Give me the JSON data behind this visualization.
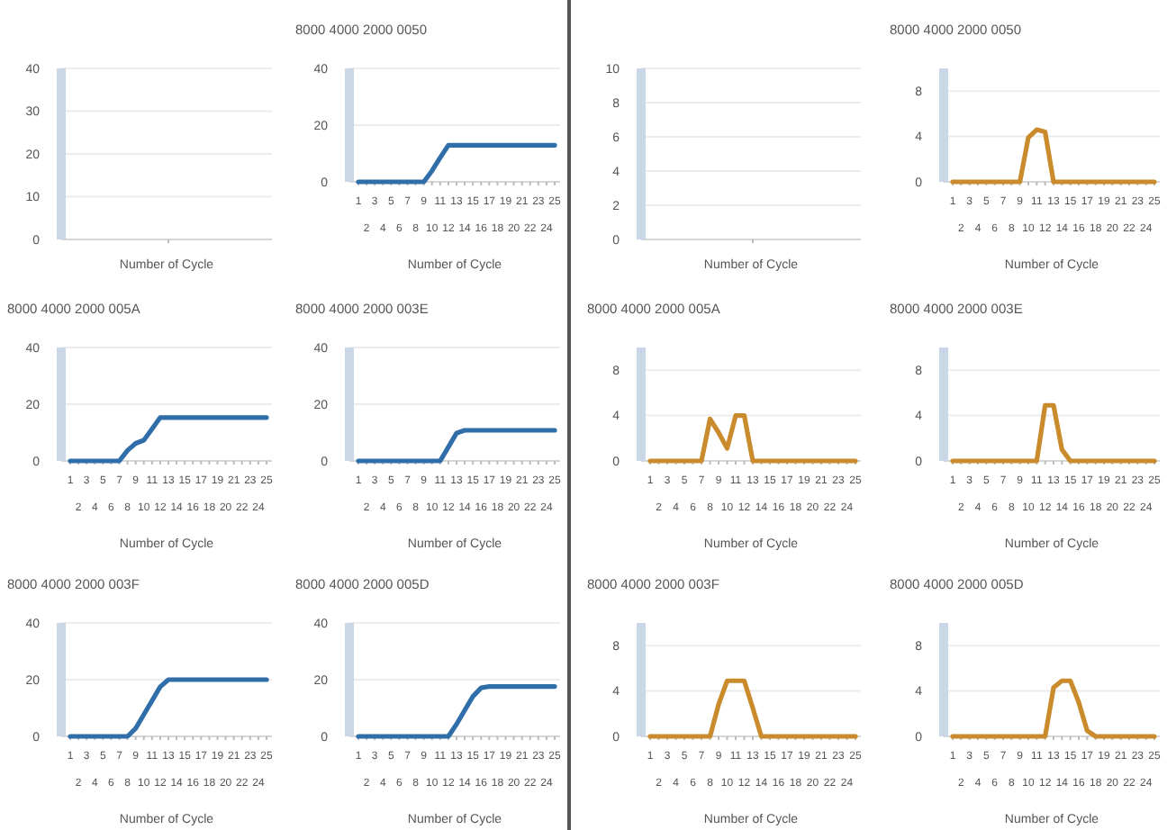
{
  "chart_data": [
    {
      "type": "line",
      "xlabel": "Number of Cycle",
      "categories": [
        null
      ],
      "values": [
        null
      ],
      "ylim": [
        0,
        40
      ],
      "yticks": [
        0,
        10,
        20,
        30,
        40
      ],
      "grid": "y",
      "tick_labels": "y"
    },
    {
      "type": "line",
      "title": "8000 4000 2000 0050",
      "xlabel": "Number of Cycle",
      "categories": [
        "1",
        "2",
        "3",
        "4",
        "5",
        "6",
        "7",
        "8",
        "9",
        "10",
        "11",
        "12",
        "13",
        "14",
        "15",
        "16",
        "17",
        "18",
        "19",
        "20",
        "21",
        "22",
        "23",
        "24",
        "25"
      ],
      "ylim": [
        0,
        40
      ],
      "yticks": [
        0,
        20,
        40
      ],
      "grid": "y",
      "series": [
        {
          "color": "#2f6ea8",
          "values": [
            0,
            0,
            0,
            0,
            0,
            0,
            0,
            0,
            0,
            3.9,
            8.5,
            12.9,
            12.9,
            12.9,
            12.9,
            12.9,
            12.9,
            12.9,
            12.9,
            12.9,
            12.9,
            12.9,
            12.9,
            12.9,
            12.9
          ]
        }
      ]
    },
    {
      "type": "line",
      "xlabel": "Number of Cycle",
      "categories": [
        null
      ],
      "values": [
        null
      ],
      "ylim": [
        0,
        10
      ],
      "yticks": [
        0,
        2,
        4,
        6,
        8,
        10
      ],
      "grid": "y",
      "tick_labels": "y"
    },
    {
      "type": "line",
      "title": "8000 4000 2000 0050",
      "xlabel": "Number of Cycle",
      "categories": [
        "1",
        "2",
        "3",
        "4",
        "5",
        "6",
        "7",
        "8",
        "9",
        "10",
        "11",
        "12",
        "13",
        "14",
        "15",
        "16",
        "17",
        "18",
        "19",
        "20",
        "21",
        "22",
        "23",
        "24",
        "25"
      ],
      "ylim": [
        0,
        10
      ],
      "yticks": [
        0,
        4,
        8
      ],
      "grid": "y",
      "series": [
        {
          "color": "#c98b2c",
          "values": [
            0,
            0,
            0,
            0,
            0,
            0,
            0,
            0,
            0,
            3.9,
            4.6,
            4.4,
            0,
            0,
            0,
            0,
            0,
            0,
            0,
            0,
            0,
            0,
            0,
            0,
            0
          ]
        }
      ]
    },
    {
      "type": "line",
      "title": "8000 4000 2000 005A",
      "xlabel": "Number of Cycle",
      "categories": [
        "1",
        "2",
        "3",
        "4",
        "5",
        "6",
        "7",
        "8",
        "9",
        "10",
        "11",
        "12",
        "13",
        "14",
        "15",
        "16",
        "17",
        "18",
        "19",
        "20",
        "21",
        "22",
        "23",
        "24",
        "25"
      ],
      "ylim": [
        0,
        40
      ],
      "yticks": [
        0,
        20,
        40
      ],
      "grid": "y",
      "series": [
        {
          "color": "#2f6ea8",
          "values": [
            0,
            0,
            0,
            0,
            0,
            0,
            0,
            3.7,
            6.2,
            7.3,
            11.3,
            15.3,
            15.3,
            15.3,
            15.3,
            15.3,
            15.3,
            15.3,
            15.3,
            15.3,
            15.3,
            15.3,
            15.3,
            15.3,
            15.3
          ]
        }
      ]
    },
    {
      "type": "line",
      "title": "8000 4000 2000 003E",
      "xlabel": "Number of Cycle",
      "categories": [
        "1",
        "2",
        "3",
        "4",
        "5",
        "6",
        "7",
        "8",
        "9",
        "10",
        "11",
        "12",
        "13",
        "14",
        "15",
        "16",
        "17",
        "18",
        "19",
        "20",
        "21",
        "22",
        "23",
        "24",
        "25"
      ],
      "ylim": [
        0,
        40
      ],
      "yticks": [
        0,
        20,
        40
      ],
      "grid": "y",
      "series": [
        {
          "color": "#2f6ea8",
          "values": [
            0,
            0,
            0,
            0,
            0,
            0,
            0,
            0,
            0,
            0,
            0,
            4.9,
            9.8,
            10.8,
            10.8,
            10.8,
            10.8,
            10.8,
            10.8,
            10.8,
            10.8,
            10.8,
            10.8,
            10.8,
            10.8
          ]
        }
      ]
    },
    {
      "type": "line",
      "title": "8000 4000 2000 005A",
      "xlabel": "Number of Cycle",
      "categories": [
        "1",
        "2",
        "3",
        "4",
        "5",
        "6",
        "7",
        "8",
        "9",
        "10",
        "11",
        "12",
        "13",
        "14",
        "15",
        "16",
        "17",
        "18",
        "19",
        "20",
        "21",
        "22",
        "23",
        "24",
        "25"
      ],
      "ylim": [
        0,
        10
      ],
      "yticks": [
        0,
        4,
        8
      ],
      "grid": "y",
      "series": [
        {
          "color": "#c98b2c",
          "values": [
            0,
            0,
            0,
            0,
            0,
            0,
            0,
            3.7,
            2.5,
            1.1,
            4,
            4,
            0,
            0,
            0,
            0,
            0,
            0,
            0,
            0,
            0,
            0,
            0,
            0,
            0
          ]
        }
      ]
    },
    {
      "type": "line",
      "title": "8000 4000 2000 003E",
      "xlabel": "Number of Cycle",
      "categories": [
        "1",
        "2",
        "3",
        "4",
        "5",
        "6",
        "7",
        "8",
        "9",
        "10",
        "11",
        "12",
        "13",
        "14",
        "15",
        "16",
        "17",
        "18",
        "19",
        "20",
        "21",
        "22",
        "23",
        "24",
        "25"
      ],
      "ylim": [
        0,
        10
      ],
      "yticks": [
        0,
        4,
        8
      ],
      "grid": "y",
      "series": [
        {
          "color": "#c98b2c",
          "values": [
            0,
            0,
            0,
            0,
            0,
            0,
            0,
            0,
            0,
            0,
            0,
            4.9,
            4.9,
            1,
            0,
            0,
            0,
            0,
            0,
            0,
            0,
            0,
            0,
            0,
            0
          ]
        }
      ]
    },
    {
      "type": "line",
      "title": "8000 4000 2000 003F",
      "xlabel": "Number of Cycle",
      "categories": [
        "1",
        "2",
        "3",
        "4",
        "5",
        "6",
        "7",
        "8",
        "9",
        "10",
        "11",
        "12",
        "13",
        "14",
        "15",
        "16",
        "17",
        "18",
        "19",
        "20",
        "21",
        "22",
        "23",
        "24",
        "25"
      ],
      "ylim": [
        0,
        40
      ],
      "yticks": [
        0,
        20,
        40
      ],
      "grid": "y",
      "series": [
        {
          "color": "#2f6ea8",
          "values": [
            0,
            0,
            0,
            0,
            0,
            0,
            0,
            0,
            2.8,
            7.7,
            12.6,
            17.5,
            20,
            20,
            20,
            20,
            20,
            20,
            20,
            20,
            20,
            20,
            20,
            20,
            20
          ]
        }
      ]
    },
    {
      "type": "line",
      "title": "8000 4000 2000 005D",
      "xlabel": "Number of Cycle",
      "categories": [
        "1",
        "2",
        "3",
        "4",
        "5",
        "6",
        "7",
        "8",
        "9",
        "10",
        "11",
        "12",
        "13",
        "14",
        "15",
        "16",
        "17",
        "18",
        "19",
        "20",
        "21",
        "22",
        "23",
        "24",
        "25"
      ],
      "ylim": [
        0,
        40
      ],
      "yticks": [
        0,
        20,
        40
      ],
      "grid": "y",
      "series": [
        {
          "color": "#2f6ea8",
          "values": [
            0,
            0,
            0,
            0,
            0,
            0,
            0,
            0,
            0,
            0,
            0,
            0,
            4.3,
            9.2,
            14.1,
            17.1,
            17.6,
            17.6,
            17.6,
            17.6,
            17.6,
            17.6,
            17.6,
            17.6,
            17.6
          ]
        }
      ]
    },
    {
      "type": "line",
      "title": "8000 4000 2000 003F",
      "xlabel": "Number of Cycle",
      "categories": [
        "1",
        "2",
        "3",
        "4",
        "5",
        "6",
        "7",
        "8",
        "9",
        "10",
        "11",
        "12",
        "13",
        "14",
        "15",
        "16",
        "17",
        "18",
        "19",
        "20",
        "21",
        "22",
        "23",
        "24",
        "25"
      ],
      "ylim": [
        0,
        10
      ],
      "yticks": [
        0,
        4,
        8
      ],
      "grid": "y",
      "series": [
        {
          "color": "#c98b2c",
          "values": [
            0,
            0,
            0,
            0,
            0,
            0,
            0,
            0,
            2.8,
            4.9,
            4.9,
            4.9,
            2.5,
            0,
            0,
            0,
            0,
            0,
            0,
            0,
            0,
            0,
            0,
            0,
            0
          ]
        }
      ]
    },
    {
      "type": "line",
      "title": "8000 4000 2000 005D",
      "xlabel": "Number of Cycle",
      "categories": [
        "1",
        "2",
        "3",
        "4",
        "5",
        "6",
        "7",
        "8",
        "9",
        "10",
        "11",
        "12",
        "13",
        "14",
        "15",
        "16",
        "17",
        "18",
        "19",
        "20",
        "21",
        "22",
        "23",
        "24",
        "25"
      ],
      "ylim": [
        0,
        10
      ],
      "yticks": [
        0,
        4,
        8
      ],
      "grid": "y",
      "series": [
        {
          "color": "#c98b2c",
          "values": [
            0,
            0,
            0,
            0,
            0,
            0,
            0,
            0,
            0,
            0,
            0,
            0,
            4.3,
            4.9,
            4.9,
            3,
            0.5,
            0,
            0,
            0,
            0,
            0,
            0,
            0,
            0
          ]
        }
      ]
    }
  ]
}
